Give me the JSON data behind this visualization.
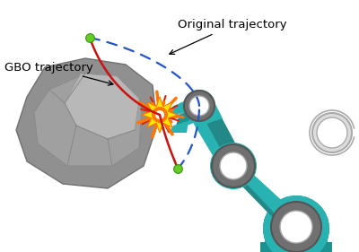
{
  "background_color": "#ffffff",
  "rock_color": "#909090",
  "rock_edge": "#707070",
  "rock_facet1": "#a8a8a8",
  "rock_facet2": "#c0c0c0",
  "robot_teal": "#29b2b2",
  "robot_teal_dark": "#1d9090",
  "robot_teal_shadow": "#228888",
  "robot_gray": "#707070",
  "robot_gray_inner": "#ffffff",
  "robot_gray_ring": "#555555",
  "tool_gray": "#808080",
  "gbo_color": "#cc1111",
  "orig_color": "#2255cc",
  "waypoint_color": "#66cc22",
  "waypoint_edge": "#339911",
  "exp_yellow": "#ffe800",
  "exp_orange": "#ff7700",
  "exp_red": "#dd2200",
  "annotation_gbo": "GBO trajectory",
  "annotation_orig": "Original trajectory",
  "label_fontsize": 9.5
}
